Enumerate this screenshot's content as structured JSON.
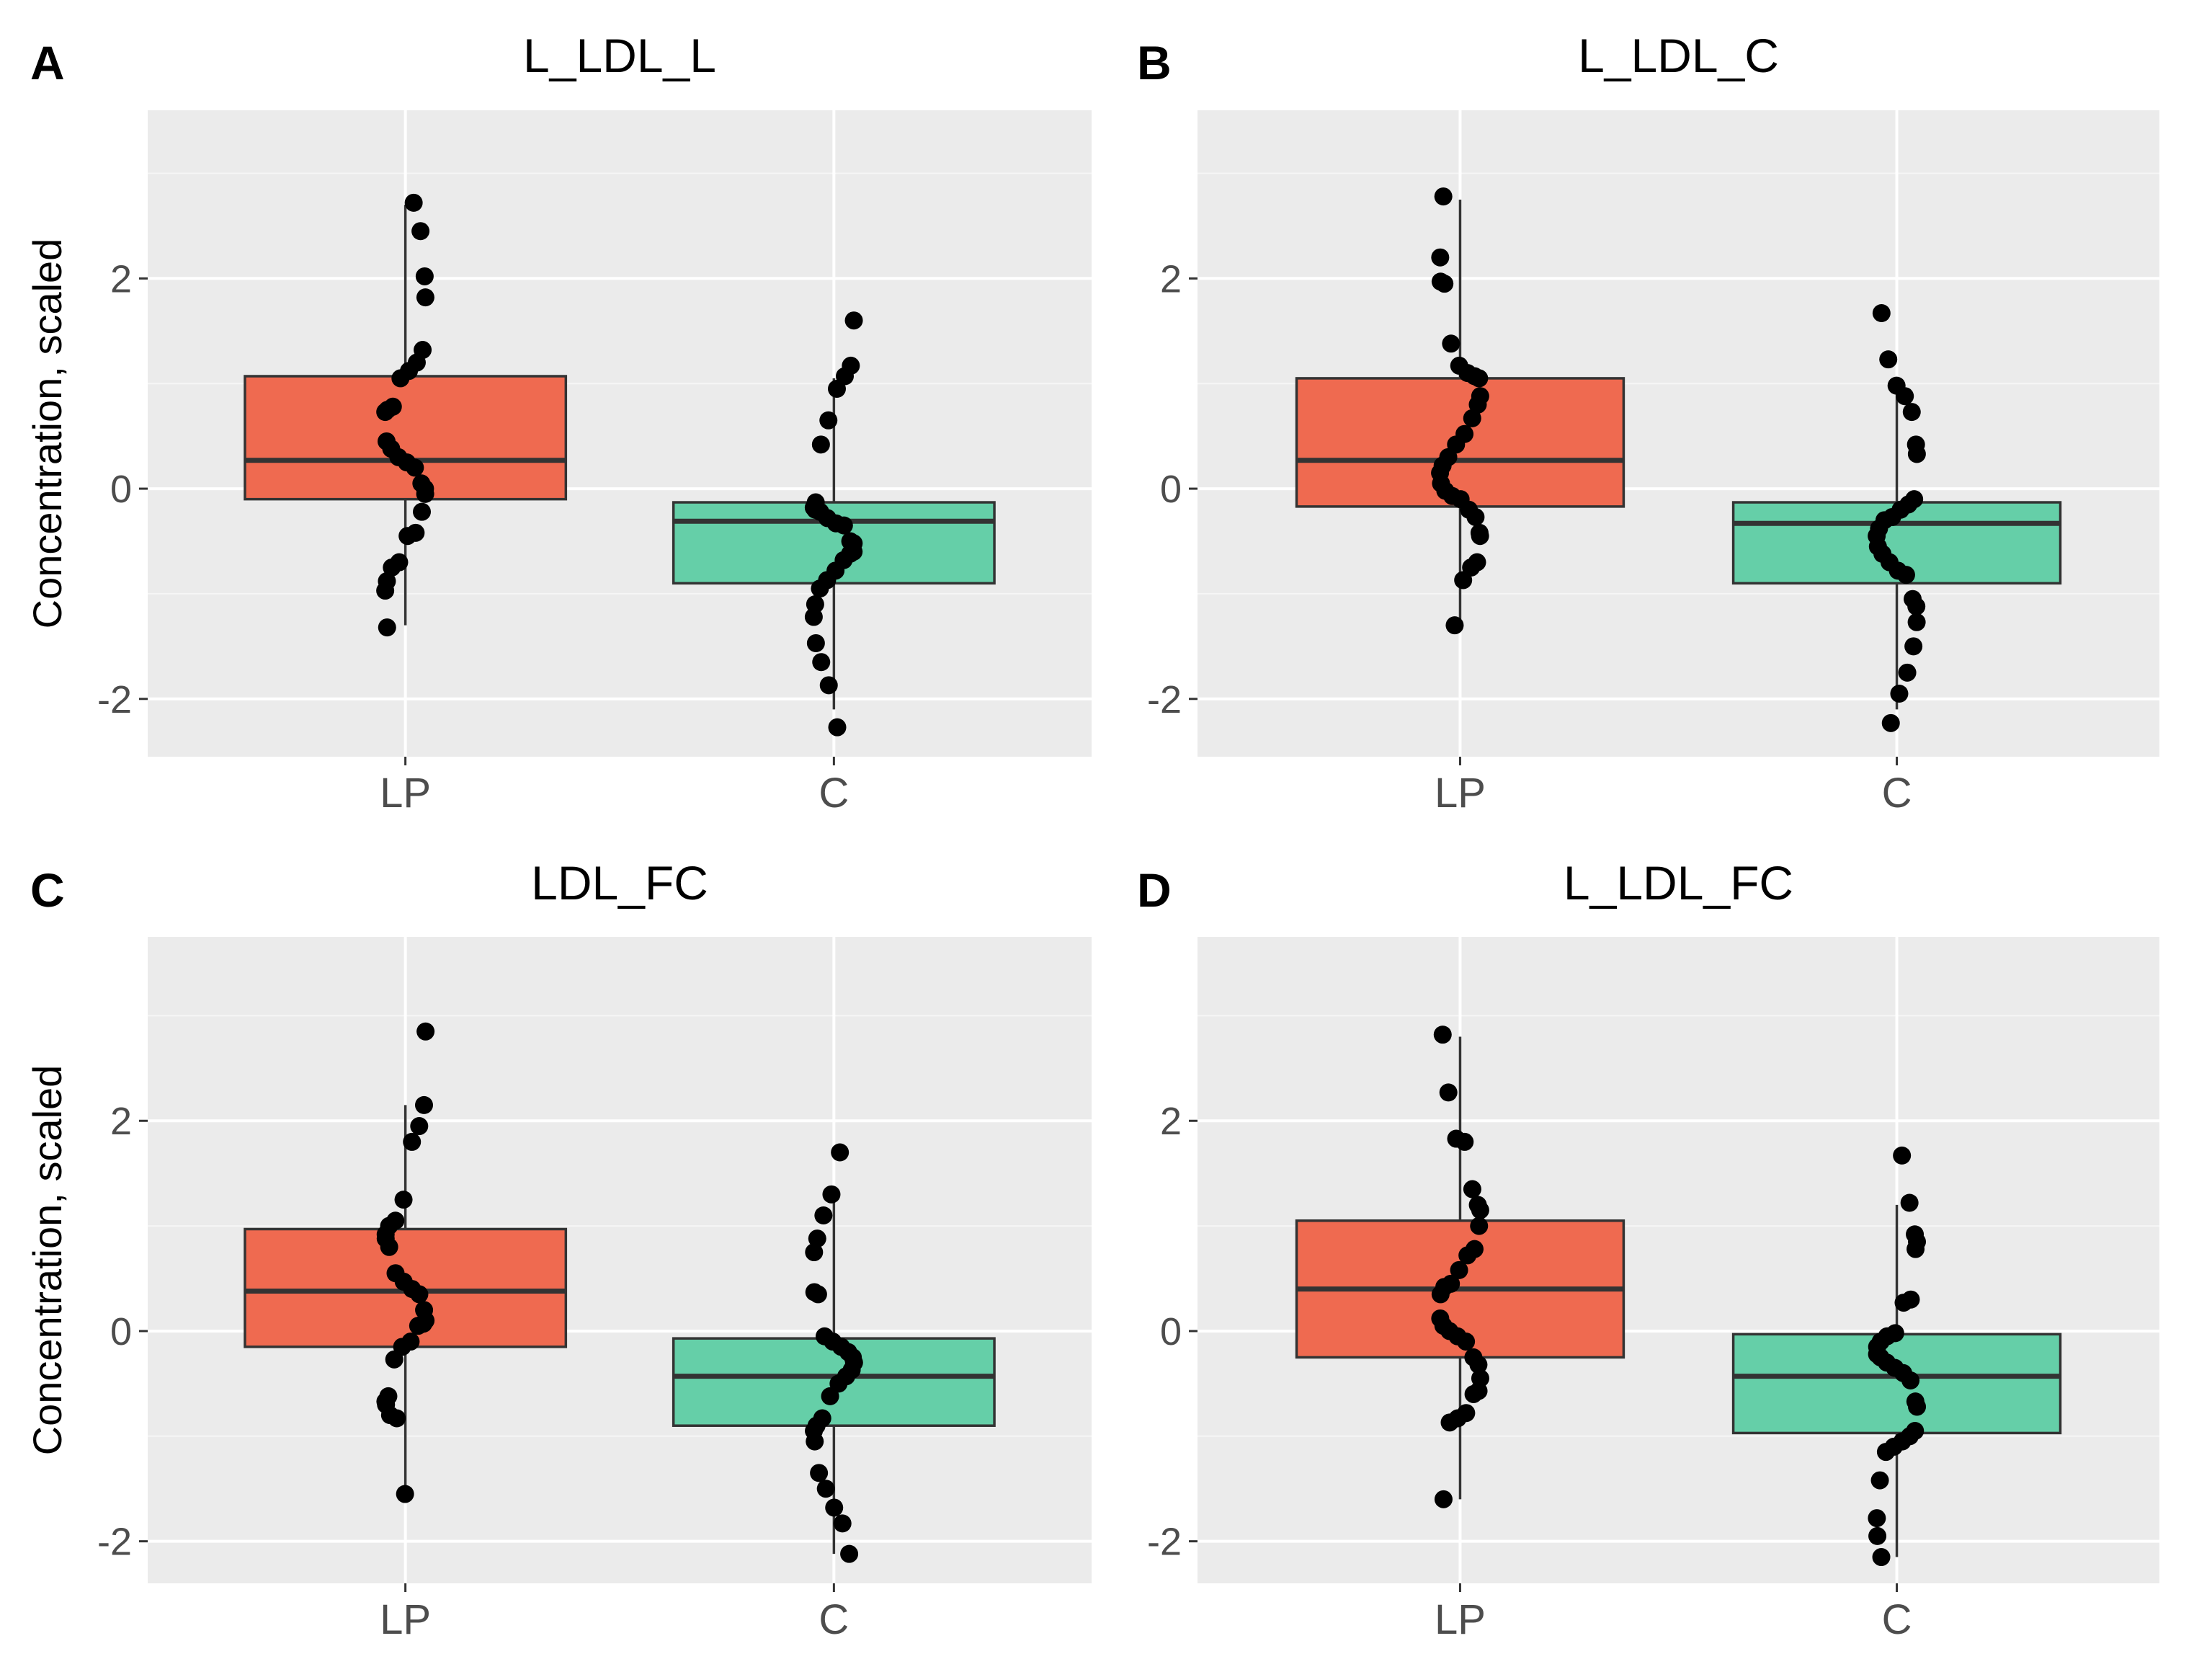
{
  "chart_data": [
    {
      "type": "box",
      "panel": "A",
      "title": "L_LDL_L",
      "ylabel": "Concentration, scaled",
      "xlabel": "",
      "categories": [
        "LP",
        "C"
      ],
      "ylim": [
        -2.55,
        3.6
      ],
      "yticks": [
        2,
        0,
        -2
      ],
      "ytick_labels": [
        "2",
        "0",
        "-2"
      ],
      "grid": true,
      "legend": "none",
      "colors": {
        "LP": "#EF6A50",
        "C": "#65CFA8"
      },
      "boxes": [
        {
          "category": "LP",
          "q1": -0.1,
          "median": 0.27,
          "q3": 1.07,
          "whisker_low": -1.3,
          "whisker_high": 2.7
        },
        {
          "category": "C",
          "q1": -0.9,
          "median": -0.31,
          "q3": -0.13,
          "whisker_low": -2.1,
          "whisker_high": 1.05
        }
      ],
      "points": [
        {
          "category": "LP",
          "values": [
            2.72,
            2.45,
            2.02,
            1.82,
            1.32,
            1.2,
            1.12,
            1.05,
            0.78,
            0.75,
            0.73,
            0.45,
            0.38,
            0.3,
            0.25,
            0.2,
            0.05,
            0.0,
            -0.05,
            -0.22,
            -0.42,
            -0.45,
            -0.7,
            -0.75,
            -0.88,
            -0.97,
            -1.32
          ]
        },
        {
          "category": "C",
          "values": [
            1.6,
            1.17,
            1.07,
            0.95,
            0.65,
            0.42,
            -0.13,
            -0.18,
            -0.2,
            -0.22,
            -0.28,
            -0.33,
            -0.35,
            -0.5,
            -0.52,
            -0.6,
            -0.62,
            -0.68,
            -0.78,
            -0.87,
            -0.95,
            -1.1,
            -1.22,
            -1.47,
            -1.65,
            -1.87,
            -2.27
          ]
        }
      ]
    },
    {
      "type": "box",
      "panel": "B",
      "title": "L_LDL_C",
      "ylabel": "",
      "xlabel": "",
      "categories": [
        "LP",
        "C"
      ],
      "ylim": [
        -2.55,
        3.6
      ],
      "yticks": [
        2,
        0,
        -2
      ],
      "ytick_labels": [
        "2",
        "0",
        "-2"
      ],
      "grid": true,
      "legend": "none",
      "colors": {
        "LP": "#EF6A50",
        "C": "#65CFA8"
      },
      "boxes": [
        {
          "category": "LP",
          "q1": -0.17,
          "median": 0.27,
          "q3": 1.05,
          "whisker_low": -1.3,
          "whisker_high": 2.75
        },
        {
          "category": "C",
          "q1": -0.9,
          "median": -0.33,
          "q3": -0.13,
          "whisker_low": -2.1,
          "whisker_high": 0.95
        }
      ],
      "points": [
        {
          "category": "LP",
          "values": [
            2.78,
            2.2,
            1.97,
            1.95,
            1.38,
            1.17,
            1.1,
            1.07,
            1.05,
            0.88,
            0.8,
            0.67,
            0.52,
            0.42,
            0.3,
            0.22,
            0.15,
            0.05,
            -0.02,
            -0.07,
            -0.1,
            -0.2,
            -0.27,
            -0.42,
            -0.45,
            -0.7,
            -0.75,
            -0.87,
            -1.3
          ]
        },
        {
          "category": "C",
          "values": [
            1.67,
            1.23,
            0.98,
            0.88,
            0.73,
            0.42,
            0.33,
            -0.1,
            -0.15,
            -0.2,
            -0.27,
            -0.3,
            -0.38,
            -0.45,
            -0.55,
            -0.62,
            -0.7,
            -0.78,
            -0.82,
            -1.05,
            -1.12,
            -1.27,
            -1.5,
            -1.75,
            -1.95,
            -2.23
          ]
        }
      ]
    },
    {
      "type": "box",
      "panel": "C",
      "title": "LDL_FC",
      "ylabel": "Concentration, scaled",
      "xlabel": "",
      "categories": [
        "LP",
        "C"
      ],
      "ylim": [
        -2.4,
        3.75
      ],
      "yticks": [
        2,
        0,
        -2
      ],
      "ytick_labels": [
        "2",
        "0",
        "-2"
      ],
      "grid": true,
      "legend": "none",
      "colors": {
        "LP": "#EF6A50",
        "C": "#65CFA8"
      },
      "boxes": [
        {
          "category": "LP",
          "q1": -0.15,
          "median": 0.38,
          "q3": 0.97,
          "whisker_low": -1.55,
          "whisker_high": 2.15
        },
        {
          "category": "C",
          "q1": -0.9,
          "median": -0.43,
          "q3": -0.07,
          "whisker_low": -2.12,
          "whisker_high": 1.3
        }
      ],
      "points": [
        {
          "category": "LP",
          "values": [
            2.85,
            2.15,
            1.95,
            1.8,
            1.25,
            1.05,
            1.0,
            0.92,
            0.88,
            0.8,
            0.55,
            0.47,
            0.4,
            0.35,
            0.2,
            0.1,
            0.07,
            0.05,
            -0.1,
            -0.15,
            -0.27,
            -0.62,
            -0.67,
            -0.7,
            -0.8,
            -0.83,
            -1.55
          ]
        },
        {
          "category": "C",
          "values": [
            1.7,
            1.3,
            1.1,
            0.88,
            0.75,
            0.37,
            0.35,
            -0.05,
            -0.1,
            -0.15,
            -0.2,
            -0.25,
            -0.3,
            -0.37,
            -0.43,
            -0.5,
            -0.62,
            -0.83,
            -0.9,
            -0.95,
            -1.05,
            -1.35,
            -1.5,
            -1.68,
            -1.83,
            -2.12
          ]
        }
      ]
    },
    {
      "type": "box",
      "panel": "D",
      "title": "L_LDL_FC",
      "ylabel": "",
      "xlabel": "",
      "categories": [
        "LP",
        "C"
      ],
      "ylim": [
        -2.4,
        3.75
      ],
      "yticks": [
        2,
        0,
        -2
      ],
      "ytick_labels": [
        "2",
        "0",
        "-2"
      ],
      "grid": true,
      "legend": "none",
      "colors": {
        "LP": "#EF6A50",
        "C": "#65CFA8"
      },
      "boxes": [
        {
          "category": "LP",
          "q1": -0.25,
          "median": 0.4,
          "q3": 1.05,
          "whisker_low": -1.6,
          "whisker_high": 2.8
        },
        {
          "category": "C",
          "q1": -0.97,
          "median": -0.43,
          "q3": -0.03,
          "whisker_low": -2.15,
          "whisker_high": 1.2
        }
      ],
      "points": [
        {
          "category": "LP",
          "values": [
            2.82,
            2.27,
            1.83,
            1.8,
            1.35,
            1.2,
            1.15,
            1.0,
            0.78,
            0.72,
            0.58,
            0.45,
            0.42,
            0.35,
            0.12,
            0.05,
            0.0,
            -0.05,
            -0.1,
            -0.25,
            -0.32,
            -0.45,
            -0.57,
            -0.6,
            -0.78,
            -0.83,
            -0.87,
            -1.6
          ]
        },
        {
          "category": "C",
          "values": [
            1.67,
            1.22,
            0.92,
            0.85,
            0.78,
            0.3,
            0.27,
            -0.02,
            -0.05,
            -0.1,
            -0.15,
            -0.22,
            -0.25,
            -0.3,
            -0.35,
            -0.4,
            -0.47,
            -0.67,
            -0.72,
            -0.95,
            -1.0,
            -1.05,
            -1.1,
            -1.15,
            -1.42,
            -1.78,
            -1.95,
            -2.15
          ]
        }
      ]
    }
  ]
}
